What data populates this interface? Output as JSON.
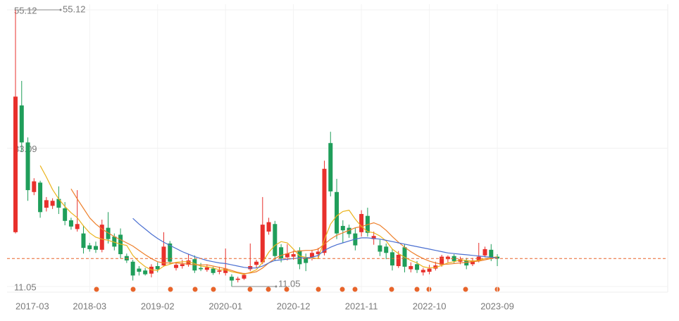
{
  "chart_data": {
    "type": "candlestick",
    "categories": [
      "2017-03",
      null,
      null,
      null,
      null,
      null,
      null,
      null,
      null,
      null,
      null,
      null,
      "2018-03",
      null,
      null,
      null,
      null,
      null,
      null,
      null,
      null,
      null,
      null,
      "2019-02",
      null,
      null,
      null,
      null,
      null,
      null,
      null,
      null,
      null,
      null,
      "2020-01",
      null,
      null,
      null,
      null,
      null,
      null,
      null,
      null,
      null,
      null,
      "2020-12",
      null,
      null,
      null,
      null,
      null,
      null,
      null,
      null,
      null,
      null,
      "2021-11",
      null,
      null,
      null,
      null,
      null,
      null,
      null,
      null,
      null,
      null,
      "2022-10",
      null,
      null,
      null,
      null,
      null,
      null,
      null,
      null,
      null,
      null,
      "2023-09"
    ],
    "open": [
      19.7,
      39.9,
      34.0,
      26.1,
      27.6,
      23.6,
      23.9,
      25.0,
      23.5,
      21.6,
      20.2,
      19.5,
      17.6,
      17.5,
      16.9,
      20.4,
      19.0,
      19.3,
      15.9,
      15.0,
      13.9,
      13.6,
      13.1,
      14.3,
      14.4,
      17.9,
      14.0,
      14.3,
      14.5,
      15.4,
      14.0,
      13.7,
      13.9,
      13.4,
      13.2,
      12.6,
      12.1,
      12.3,
      13.8,
      14.5,
      14.9,
      19.8,
      21.0,
      17.3,
      15.7,
      15.8,
      16.8,
      15.6,
      15.7,
      16.2,
      16.4,
      33.9,
      26.1,
      20.7,
      20.4,
      19.5,
      19.7,
      22.3,
      18.6,
      17.6,
      17.4,
      16.5,
      14.3,
      17.3,
      13.8,
      14.6,
      13.3,
      13.4,
      13.9,
      14.5,
      15.4,
      15.9,
      15.0,
      15.2,
      14.6,
      15.2,
      16.0,
      16.9,
      15.8
    ],
    "high": [
      55.12,
      43.8,
      34.8,
      28.3,
      27.9,
      25.3,
      25.1,
      27.0,
      24.5,
      22.0,
      26.4,
      20.8,
      18.0,
      18.2,
      21.7,
      22.9,
      19.5,
      20.3,
      16.3,
      15.3,
      14.3,
      14.0,
      14.6,
      14.9,
      19.7,
      18.3,
      14.8,
      15.3,
      16.2,
      16.0,
      14.8,
      14.6,
      14.2,
      14.2,
      17.1,
      13.0,
      12.6,
      13.2,
      17.9,
      15.3,
      25.3,
      22.0,
      21.5,
      17.8,
      17.8,
      16.8,
      17.3,
      16.3,
      16.9,
      17.2,
      31.1,
      35.7,
      28.2,
      21.6,
      20.9,
      20.4,
      23.2,
      23.6,
      19.8,
      18.5,
      17.9,
      17.0,
      16.7,
      17.8,
      14.9,
      15.1,
      14.0,
      14.5,
      15.0,
      16.1,
      16.0,
      16.2,
      15.8,
      15.6,
      15.6,
      18.0,
      17.4,
      17.8,
      16.2
    ],
    "low": [
      19.5,
      32.5,
      24.7,
      25.6,
      22.0,
      23.0,
      23.4,
      22.6,
      20.8,
      20.1,
      19.8,
      16.3,
      16.6,
      16.4,
      16.5,
      17.9,
      16.8,
      15.5,
      14.8,
      12.0,
      12.8,
      12.8,
      12.5,
      13.3,
      14.2,
      14.6,
      13.6,
      13.9,
      14.2,
      13.2,
      13.5,
      13.4,
      12.9,
      13.0,
      12.8,
      11.05,
      11.7,
      12.1,
      13.5,
      14.0,
      14.6,
      19.3,
      15.1,
      14.9,
      15.2,
      15.3,
      13.8,
      13.5,
      15.2,
      15.6,
      16.0,
      25.4,
      18.6,
      18.0,
      18.8,
      16.8,
      19.0,
      19.0,
      17.7,
      15.9,
      15.4,
      13.6,
      14.0,
      13.3,
      13.3,
      13.2,
      12.8,
      13.0,
      13.6,
      14.2,
      14.9,
      14.8,
      14.6,
      13.8,
      14.3,
      14.9,
      15.7,
      15.1,
      14.3
    ],
    "close": [
      41.3,
      34.0,
      26.4,
      27.8,
      22.9,
      24.8,
      24.7,
      23.6,
      21.5,
      20.6,
      21.0,
      17.2,
      17.0,
      16.9,
      20.9,
      18.6,
      17.4,
      16.2,
      15.2,
      12.8,
      13.4,
      13.0,
      14.2,
      13.8,
      17.4,
      15.0,
      14.5,
      14.6,
      15.2,
      13.6,
      13.8,
      14.1,
      13.2,
      13.6,
      13.9,
      12.0,
      12.3,
      12.9,
      14.3,
      15.0,
      20.9,
      21.3,
      15.9,
      15.5,
      16.3,
      16.2,
      14.6,
      14.8,
      16.4,
      16.6,
      29.8,
      26.2,
      19.5,
      20.0,
      19.4,
      17.6,
      22.6,
      19.6,
      19.1,
      16.6,
      16.4,
      14.4,
      16.1,
      14.2,
      14.3,
      13.7,
      13.7,
      13.9,
      14.4,
      15.8,
      15.8,
      15.1,
      15.4,
      14.4,
      15.2,
      15.8,
      17.0,
      15.7,
      15.5
    ],
    "up_color": "#e8302c",
    "down_color": "#1f9e5a",
    "series": [
      {
        "color": "#ebb31c",
        "values": [
          null,
          null,
          null,
          null,
          30.3,
          28.5,
          26.5,
          25.0,
          23.8,
          22.8,
          22.0,
          20.7,
          19.6,
          18.9,
          18.6,
          18.4,
          18.1,
          17.8,
          17.6,
          16.0,
          15.0,
          14.2,
          13.7,
          13.6,
          14.3,
          14.6,
          14.9,
          15.0,
          15.0,
          14.7,
          14.3,
          14.2,
          14.0,
          13.7,
          13.7,
          13.4,
          13.2,
          13.0,
          13.3,
          13.7,
          14.9,
          16.5,
          17.6,
          18.2,
          18.0,
          17.0,
          15.9,
          15.7,
          15.6,
          15.5,
          18.5,
          21.0,
          22.3,
          23.0,
          23.2,
          21.8,
          20.6,
          19.8,
          19.6,
          19.1,
          18.3,
          17.0,
          16.3,
          15.7,
          15.2,
          14.8,
          14.2,
          14.0,
          14.1,
          14.4,
          14.8,
          15.0,
          15.3,
          15.2,
          15.1,
          15.2,
          15.5,
          15.6,
          15.8
        ]
      },
      {
        "color": "#ee7f2a",
        "values": [
          null,
          null,
          null,
          null,
          null,
          null,
          null,
          null,
          null,
          26.6,
          25.0,
          23.5,
          22.0,
          21.0,
          20.2,
          19.6,
          19.0,
          18.5,
          18.0,
          17.5,
          16.8,
          16.1,
          15.5,
          15.0,
          14.8,
          14.8,
          14.8,
          14.7,
          14.6,
          14.5,
          14.5,
          14.5,
          14.3,
          14.1,
          13.9,
          13.6,
          13.3,
          13.1,
          13.2,
          13.4,
          14.0,
          14.8,
          15.5,
          16.0,
          16.3,
          16.6,
          16.7,
          16.8,
          16.8,
          17.0,
          17.8,
          18.6,
          19.2,
          19.6,
          20.0,
          20.4,
          20.6,
          20.9,
          21.2,
          20.8,
          20.0,
          19.0,
          18.1,
          17.3,
          16.6,
          16.0,
          15.5,
          15.1,
          14.8,
          14.6,
          14.6,
          14.7,
          14.8,
          14.9,
          15.0,
          15.1,
          15.3,
          15.5,
          15.7
        ]
      },
      {
        "color": "#4a6fd1",
        "values": [
          null,
          null,
          null,
          null,
          null,
          null,
          null,
          null,
          null,
          null,
          null,
          null,
          null,
          null,
          null,
          null,
          null,
          null,
          null,
          21.9,
          21.0,
          20.2,
          19.4,
          18.7,
          18.1,
          17.6,
          17.1,
          16.6,
          16.2,
          15.8,
          15.5,
          15.2,
          15.0,
          14.8,
          14.7,
          14.5,
          14.3,
          14.1,
          14.0,
          14.0,
          14.3,
          14.8,
          15.2,
          15.3,
          15.4,
          15.5,
          15.6,
          15.6,
          15.7,
          16.0,
          16.8,
          17.3,
          17.7,
          18.0,
          18.3,
          18.6,
          18.8,
          18.8,
          18.7,
          18.6,
          18.4,
          18.2,
          18.0,
          17.8,
          17.6,
          17.4,
          17.2,
          17.0,
          16.8,
          16.6,
          16.4,
          16.3,
          16.2,
          16.1,
          16.0,
          15.9,
          15.8,
          15.7,
          15.6
        ]
      }
    ],
    "ylim": [
      10.15,
      56.02
    ],
    "yticks": [
      11.05,
      33.09,
      55.12
    ],
    "grid": true,
    "max_label": 55.12,
    "min_label": 11.05,
    "last_price_line": true,
    "last_price_color": "#e8642a"
  }
}
